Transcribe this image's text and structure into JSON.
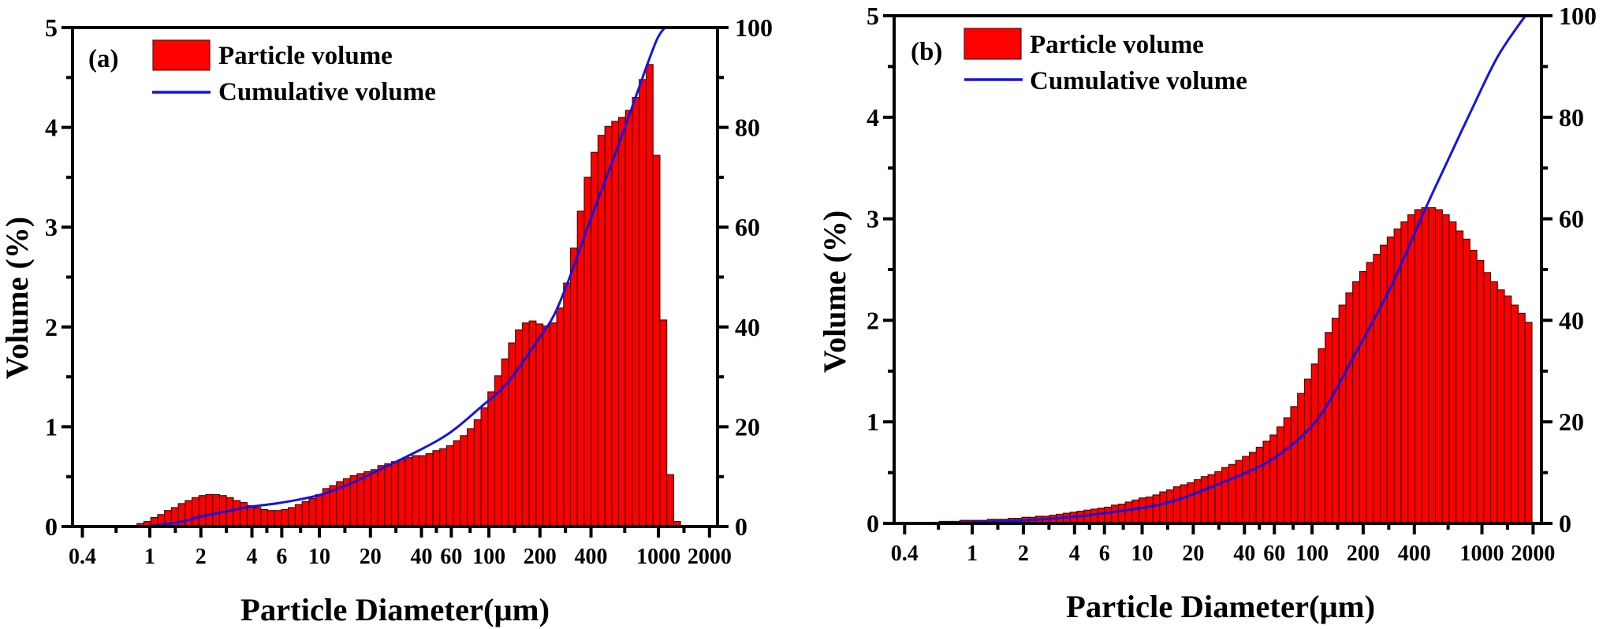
{
  "figure": {
    "description": "Particle size distribution panels"
  },
  "chart_data": [
    {
      "type": "bar",
      "panel_label": "(a)",
      "title": "",
      "xlabel": "Particle Diameter(μm)",
      "ylabel": "Volume (%)",
      "y2label": "",
      "xscale": "log",
      "xlim": [
        0.35,
        2230
      ],
      "ylim": [
        0,
        5
      ],
      "y2lim": [
        0,
        100
      ],
      "grid": false,
      "x_ticks": [
        0.4,
        1,
        2,
        4,
        6,
        10,
        20,
        40,
        60,
        100,
        200,
        400,
        1000,
        2000
      ],
      "x_tick_labels": [
        "0.4",
        "1",
        "2",
        "4",
        "6",
        "10",
        "20",
        "40",
        "60",
        "100",
        "200",
        "400",
        "1000",
        "2000"
      ],
      "y_ticks": [
        0,
        1,
        2,
        3,
        4,
        5
      ],
      "y_tick_labels": [
        "0",
        "1",
        "2",
        "3",
        "4",
        "5"
      ],
      "y2_ticks": [
        0,
        20,
        40,
        60,
        80,
        100
      ],
      "y2_tick_labels": [
        "0",
        "20",
        "40",
        "60",
        "80",
        "100"
      ],
      "legend": {
        "position": "top-left",
        "entries": [
          "Particle volume",
          "Cumulative volume"
        ]
      },
      "colors": {
        "bar": "#ff0000",
        "line": "#1414e6"
      },
      "series": [
        {
          "name": "Particle volume",
          "type": "bar",
          "axis": "left",
          "bin_range_um": [
            0.765,
            1350
          ],
          "values": [
            0.01,
            0.03,
            0.05,
            0.09,
            0.12,
            0.16,
            0.19,
            0.23,
            0.26,
            0.29,
            0.31,
            0.32,
            0.32,
            0.31,
            0.29,
            0.26,
            0.24,
            0.21,
            0.19,
            0.17,
            0.16,
            0.16,
            0.17,
            0.19,
            0.22,
            0.25,
            0.28,
            0.32,
            0.38,
            0.41,
            0.45,
            0.48,
            0.51,
            0.53,
            0.55,
            0.57,
            0.61,
            0.63,
            0.65,
            0.67,
            0.69,
            0.71,
            0.71,
            0.73,
            0.76,
            0.78,
            0.81,
            0.86,
            0.91,
            0.98,
            1.07,
            1.19,
            1.35,
            1.51,
            1.68,
            1.84,
            1.97,
            2.04,
            2.06,
            2.03,
            2.01,
            2.04,
            2.19,
            2.44,
            2.79,
            3.16,
            3.5,
            3.75,
            3.92,
            4.01,
            4.06,
            4.1,
            4.17,
            4.3,
            4.48,
            4.63,
            3.72,
            2.07,
            0.52,
            0.05
          ]
        },
        {
          "name": "Cumulative volume",
          "type": "line",
          "axis": "right",
          "x": [
            0.9,
            1,
            1.5,
            2,
            3,
            4,
            6,
            10,
            15,
            20,
            40,
            60,
            90,
            130,
            200,
            244,
            300,
            402,
            575,
            822,
            979,
            1090
          ],
          "y": [
            0,
            0.1,
            0.9,
            2.0,
            3.2,
            4.0,
            4.8,
            6.3,
            8.5,
            10.5,
            15.5,
            19,
            24,
            29,
            38,
            42.6,
            50,
            62,
            76,
            90.8,
            97.6,
            100
          ]
        }
      ]
    },
    {
      "type": "bar",
      "panel_label": "(b)",
      "title": "",
      "xlabel": "Particle Diameter(μm)",
      "ylabel": "Volume (%)",
      "y2label": "",
      "xscale": "log",
      "xlim": [
        0.347,
        2240
      ],
      "ylim": [
        0,
        5
      ],
      "y2lim": [
        0,
        100
      ],
      "grid": false,
      "x_ticks": [
        0.4,
        1,
        2,
        4,
        6,
        10,
        20,
        40,
        60,
        100,
        200,
        400,
        1000,
        2000
      ],
      "x_tick_labels": [
        "0.4",
        "1",
        "2",
        "4",
        "6",
        "10",
        "20",
        "40",
        "60",
        "100",
        "200",
        "400",
        "1000",
        "2000"
      ],
      "y_ticks": [
        0,
        1,
        2,
        3,
        4,
        5
      ],
      "y_tick_labels": [
        "0",
        "1",
        "2",
        "3",
        "4",
        "5"
      ],
      "y2_ticks": [
        0,
        20,
        40,
        60,
        80,
        100
      ],
      "y2_tick_labels": [
        "0",
        "20",
        "40",
        "60",
        "80",
        "100"
      ],
      "legend": {
        "position": "top-left",
        "entries": [
          "Particle volume",
          "Cumulative volume"
        ]
      },
      "colors": {
        "bar": "#ff0000",
        "line": "#1414e6"
      },
      "series": [
        {
          "name": "Particle volume",
          "type": "bar",
          "axis": "left",
          "bin_range_um": [
            0.53,
            1970
          ],
          "values": [
            0.01,
            0.01,
            0.02,
            0.02,
            0.02,
            0.03,
            0.03,
            0.03,
            0.03,
            0.04,
            0.04,
            0.04,
            0.05,
            0.05,
            0.06,
            0.06,
            0.07,
            0.07,
            0.08,
            0.09,
            0.1,
            0.11,
            0.12,
            0.13,
            0.14,
            0.15,
            0.16,
            0.18,
            0.19,
            0.21,
            0.23,
            0.25,
            0.26,
            0.28,
            0.31,
            0.33,
            0.36,
            0.38,
            0.4,
            0.43,
            0.46,
            0.48,
            0.51,
            0.55,
            0.58,
            0.62,
            0.66,
            0.7,
            0.75,
            0.81,
            0.87,
            0.95,
            1.04,
            1.15,
            1.28,
            1.42,
            1.57,
            1.72,
            1.88,
            2.02,
            2.15,
            2.27,
            2.38,
            2.48,
            2.57,
            2.65,
            2.74,
            2.82,
            2.9,
            2.97,
            3.04,
            3.09,
            3.11,
            3.11,
            3.09,
            3.04,
            2.97,
            2.88,
            2.8,
            2.69,
            2.59,
            2.47,
            2.38,
            2.3,
            2.24,
            2.15,
            2.07,
            1.98
          ]
        },
        {
          "name": "Cumulative volume",
          "type": "line",
          "axis": "right",
          "x": [
            0.5,
            0.74,
            1.5,
            3.1,
            6.3,
            13.8,
            28,
            53,
            82,
            117,
            180,
            290,
            465,
            600,
            870,
            1240,
            1800
          ],
          "y": [
            0,
            0.1,
            0.4,
            1.0,
            2.1,
            4.0,
            7.7,
            11.8,
            16.4,
            22.2,
            33.5,
            46.5,
            62,
            70,
            81.5,
            92,
            100
          ]
        }
      ]
    }
  ]
}
